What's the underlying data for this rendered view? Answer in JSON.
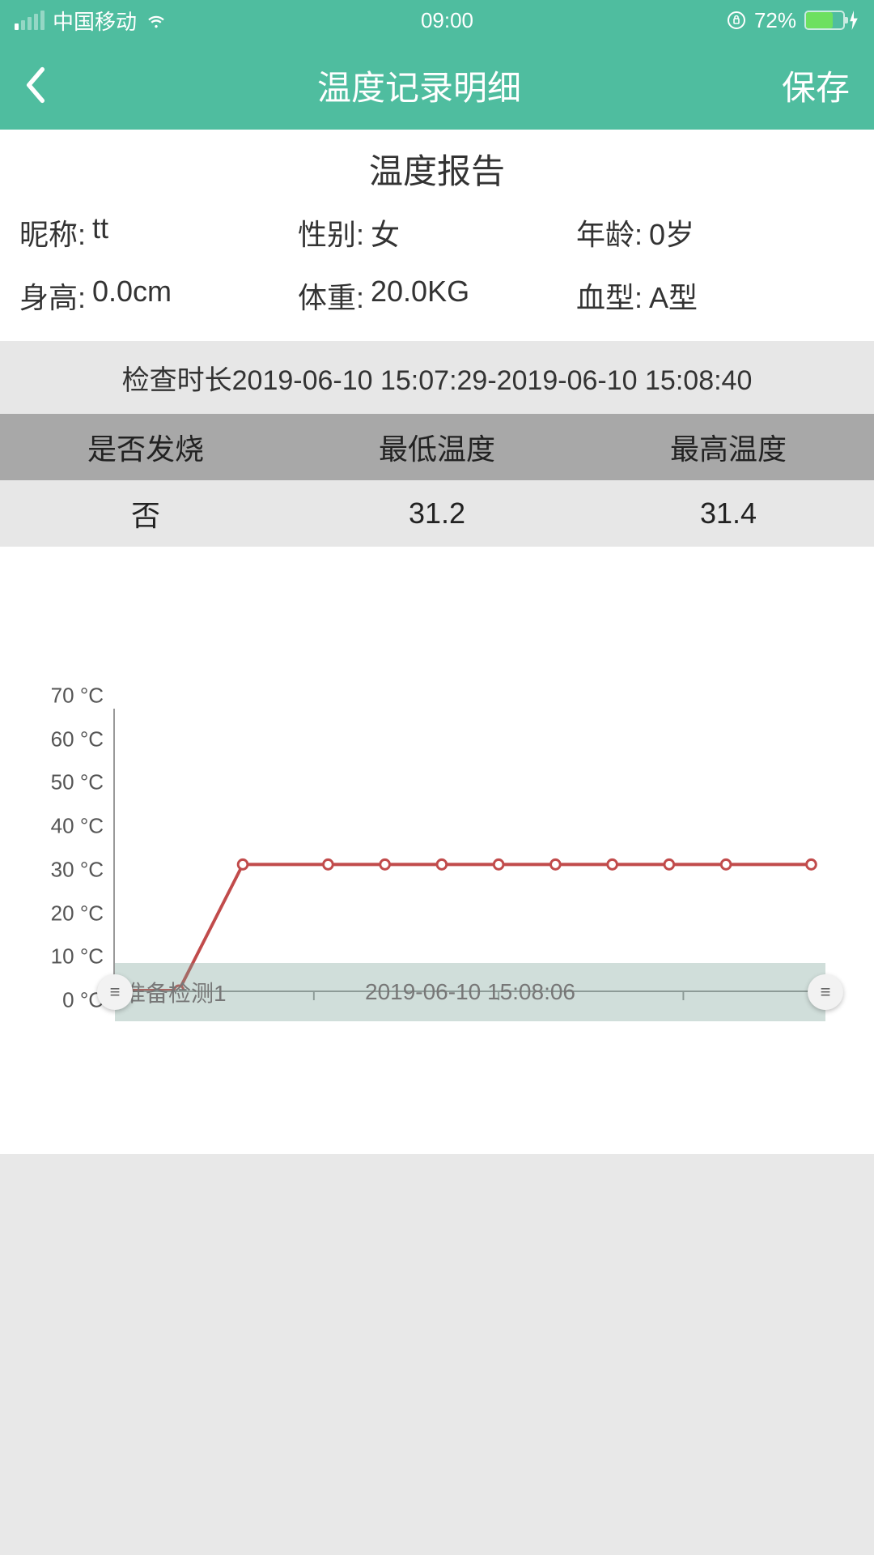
{
  "status_bar": {
    "carrier": "中国移动",
    "time": "09:00",
    "battery_pct_text": "72%",
    "battery_pct": 72,
    "lock_icon": "orientation-lock-icon",
    "charging": true
  },
  "header": {
    "title": "温度记录明细",
    "save_label": "保存"
  },
  "report": {
    "title": "温度报告",
    "fields": {
      "nickname_label": "昵称:",
      "nickname_value": "tt",
      "gender_label": "性别:",
      "gender_value": "女",
      "age_label": "年龄:",
      "age_value": "0岁",
      "height_label": "身高:",
      "height_value": "0.0cm",
      "weight_label": "体重:",
      "weight_value": "20.0KG",
      "blood_label": "血型:",
      "blood_value": "A型"
    }
  },
  "check_bar": {
    "text": "检查时长2019-06-10 15:07:29-2019-06-10 15:08:40"
  },
  "summary": {
    "head": {
      "c1": "是否发烧",
      "c2": "最低温度",
      "c3": "最高温度"
    },
    "row": {
      "c1": "否",
      "c2": "31.2",
      "c3": "31.4"
    }
  },
  "chart": {
    "type": "line",
    "y_unit": "°C",
    "ylim": [
      0,
      70
    ],
    "ytick_step": 10,
    "ytick_labels": [
      "0 °C",
      "10 °C",
      "20 °C",
      "30 °C",
      "40 °C",
      "50 °C",
      "60 °C",
      "70 °C"
    ],
    "line_color": "#c14b4b",
    "marker_fill": "#ffffff",
    "marker_stroke": "#c14b4b",
    "marker_radius": 6,
    "line_width": 4,
    "axis_color": "#999999",
    "background_color": "#ffffff",
    "x_positions": [
      0.0,
      0.09,
      0.18,
      0.3,
      0.38,
      0.46,
      0.54,
      0.62,
      0.7,
      0.78,
      0.86,
      0.98
    ],
    "y_values": [
      0,
      0,
      31.3,
      31.3,
      31.3,
      31.3,
      31.3,
      31.3,
      31.3,
      31.3,
      31.3,
      31.3
    ],
    "x_tick_positions": [
      0.02,
      0.28,
      0.54,
      0.8
    ],
    "overlay_label_left": "准备检测1",
    "overlay_label_center": "2019-06-10 15:08:06",
    "overlay_color": "rgba(120,160,150,0.35)"
  },
  "colors": {
    "primary": "#4fbd9f",
    "header_row": "#a8a8a8",
    "light_row": "#e7e7e7"
  }
}
